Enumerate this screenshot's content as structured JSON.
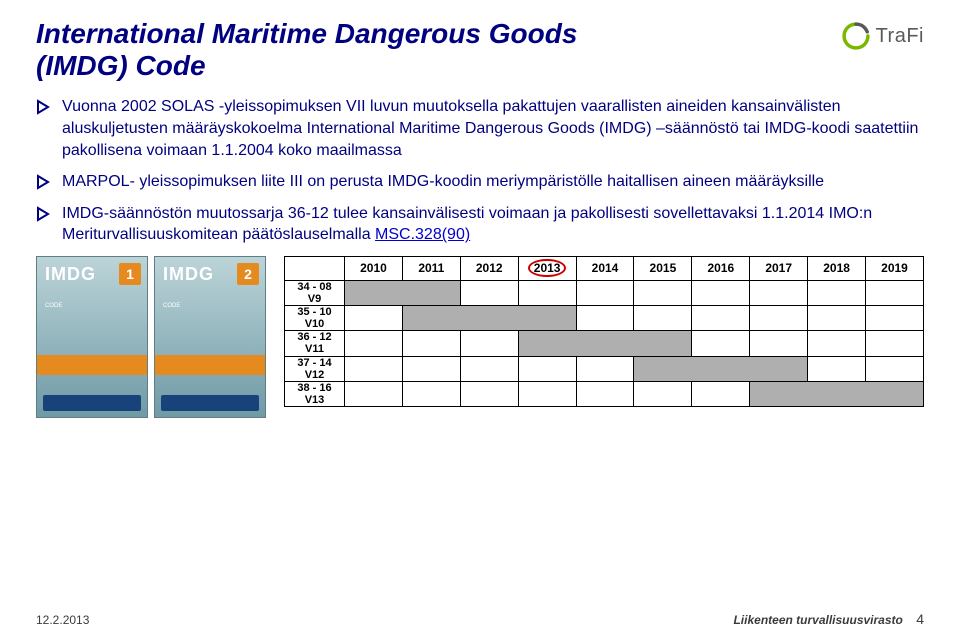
{
  "title_line1": "International Maritime Dangerous Goods",
  "title_line2": "(IMDG) Code",
  "logo_text": "TraFi",
  "bullets": [
    "Vuonna 2002 SOLAS -yleissopimuksen VII luvun muutoksella pakattujen vaarallisten aineiden kansainvälisten aluskuljetusten määräyskokoelma International Maritime Dangerous Goods (IMDG) –säännöstö tai IMDG-koodi saatettiin pakollisena voimaan 1.1.2004 koko maailmassa",
    "MARPOL- yleissopimuksen liite III on perusta IMDG-koodin meriympäristölle haitallisen aineen määräyksille",
    "IMDG-säännöstön muutossarja 36-12 tulee kansainvälisesti voimaan ja pakollisesti sovellettavaksi  1.1.2014 IMO:n Meriturvallisuuskomitean päätöslauselmalla "
  ],
  "bullet3_link_text": "MSC.328(90)",
  "book": {
    "title": "IMDG",
    "sub": "CODE"
  },
  "timeline": {
    "years": [
      "2010",
      "2011",
      "2012",
      "2013",
      "2014",
      "2015",
      "2016",
      "2017",
      "2018",
      "2019"
    ],
    "circled_year_index": 3,
    "rows": [
      {
        "label_top": "34 - 08",
        "label_bottom": "V9",
        "start": 0,
        "span": 2
      },
      {
        "label_top": "35 - 10",
        "label_bottom": "V10",
        "start": 1,
        "span": 3
      },
      {
        "label_top": "36 - 12",
        "label_bottom": "V11",
        "start": 3,
        "span": 3
      },
      {
        "label_top": "37 - 14",
        "label_bottom": "V12",
        "start": 5,
        "span": 3
      },
      {
        "label_top": "38 - 16",
        "label_bottom": "V13",
        "start": 7,
        "span": 3
      }
    ]
  },
  "footer": {
    "date": "12.2.2013",
    "brand": "Liikenteen turvallisuusvirasto",
    "page": "4"
  },
  "colors": {
    "navy": "#000080",
    "bar": "#afafaf",
    "circle": "#cc0000"
  }
}
